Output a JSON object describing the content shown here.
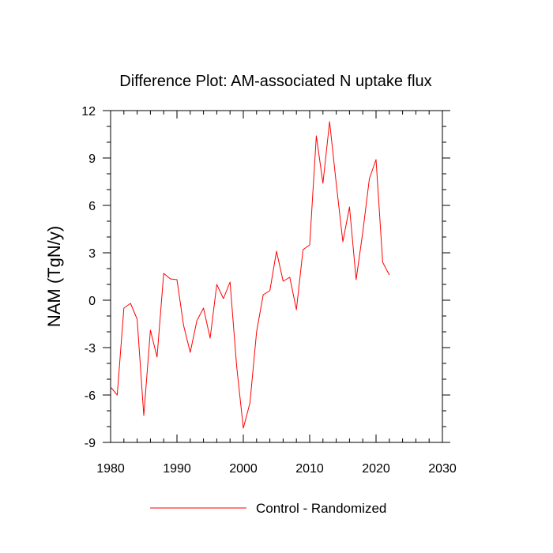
{
  "chart_data": {
    "type": "line",
    "title": "Difference Plot: AM-associated N uptake flux",
    "xlabel": "",
    "ylabel": "NAM  (TgN/y)",
    "xlim": [
      1980,
      2030
    ],
    "ylim": [
      -9,
      12
    ],
    "x_ticks": [
      1980,
      1990,
      2000,
      2010,
      2020,
      2030
    ],
    "x_tick_labels": [
      "1980",
      "1990",
      "2000",
      "2010",
      "2020",
      "2030"
    ],
    "y_ticks": [
      -9,
      -6,
      -3,
      0,
      3,
      6,
      9,
      12
    ],
    "y_tick_labels": [
      "-9",
      "-6",
      "-3",
      "0",
      "3",
      "6",
      "9",
      "12"
    ],
    "grid": false,
    "legend_position": "bottom-center",
    "series": [
      {
        "name": "Control - Randomized",
        "color": "#ff0000",
        "x": [
          1980,
          1981,
          1982,
          1983,
          1984,
          1985,
          1986,
          1987,
          1988,
          1989,
          1990,
          1991,
          1992,
          1993,
          1994,
          1995,
          1996,
          1997,
          1998,
          1999,
          2000,
          2001,
          2002,
          2003,
          2004,
          2005,
          2006,
          2007,
          2008,
          2009,
          2010,
          2011,
          2012,
          2013,
          2014,
          2015,
          2016,
          2017,
          2018,
          2019,
          2020,
          2021,
          2022
        ],
        "values": [
          -5.5,
          -6.0,
          -0.5,
          -0.2,
          -1.2,
          -7.3,
          -1.9,
          -3.6,
          1.7,
          1.35,
          1.3,
          -1.6,
          -3.3,
          -1.3,
          -0.5,
          -2.4,
          1.0,
          0.1,
          1.15,
          -4.2,
          -8.1,
          -6.5,
          -2.0,
          0.35,
          0.6,
          3.1,
          1.2,
          1.45,
          -0.6,
          3.2,
          3.5,
          10.4,
          7.4,
          11.3,
          7.4,
          3.7,
          5.9,
          1.3,
          4.3,
          7.7,
          8.9,
          2.4,
          1.6
        ]
      }
    ]
  }
}
